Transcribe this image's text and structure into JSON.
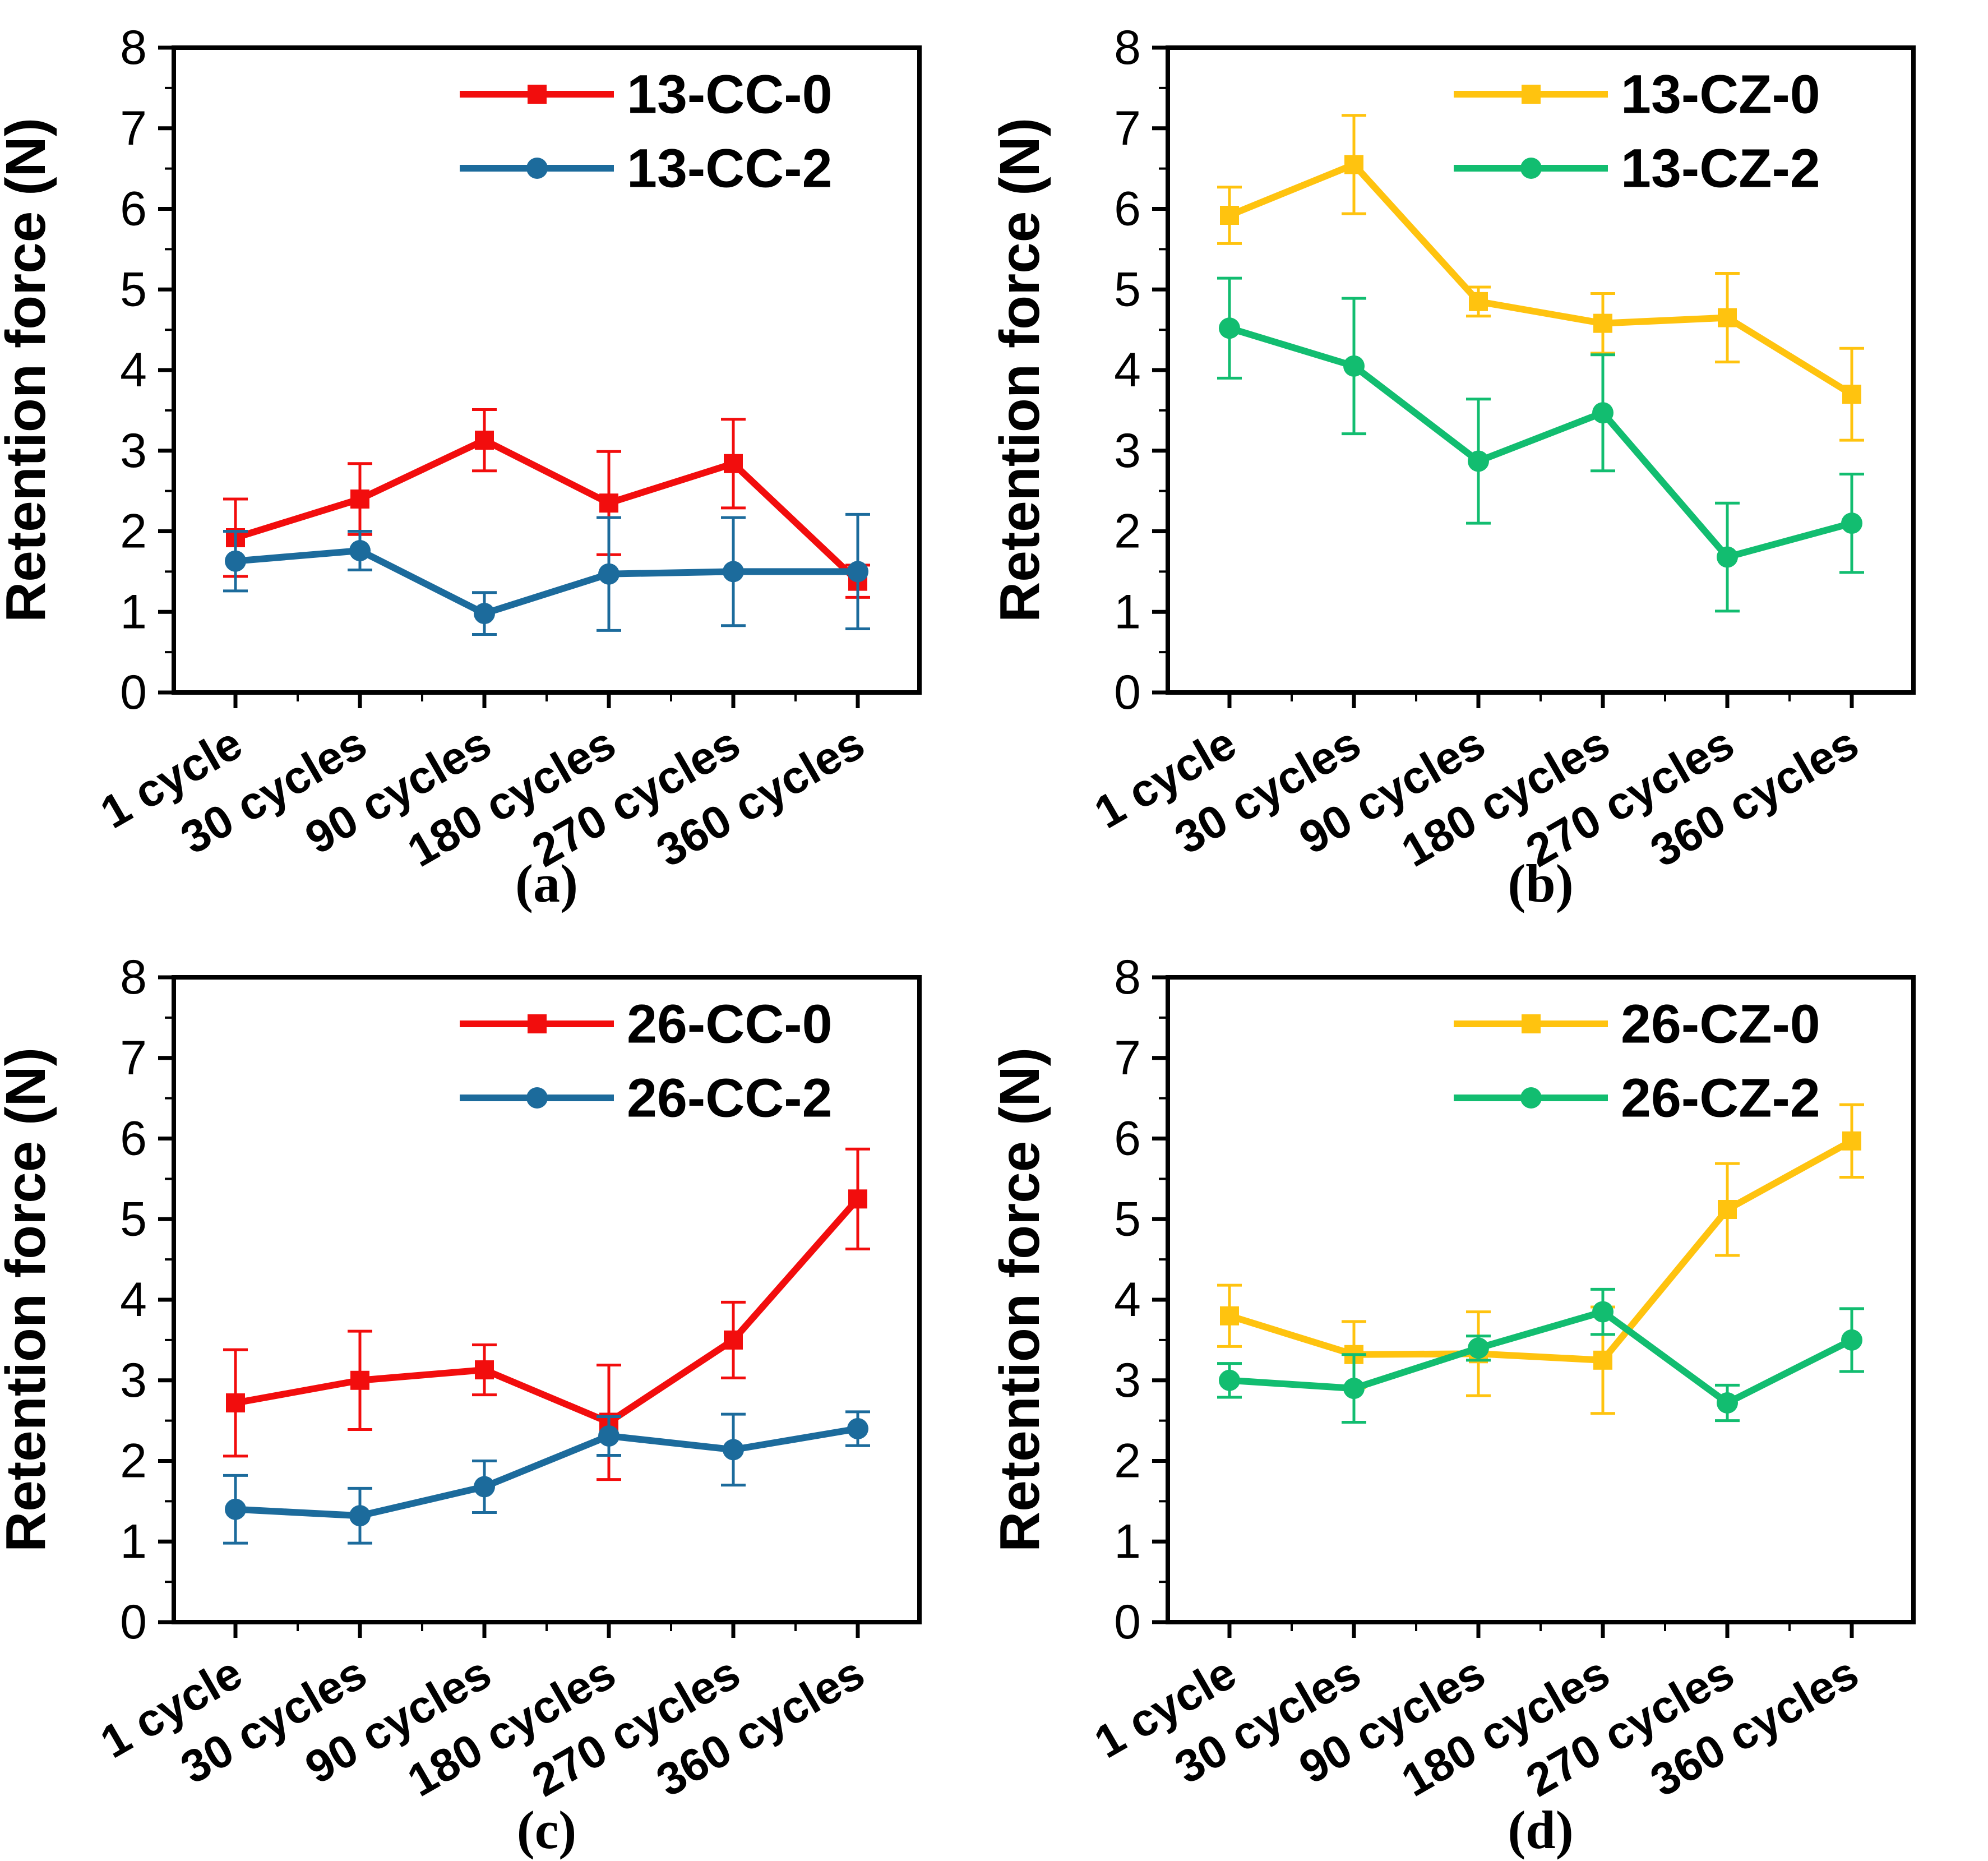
{
  "figure": {
    "background_color": "#FFFFFF",
    "axis_color": "#000000",
    "text_color": "#000000"
  },
  "colors": {
    "red": "#F20D0D",
    "blue": "#1C6B9C",
    "yellow": "#FFC30F",
    "green": "#12BD70"
  },
  "chart_data": [
    {
      "id": "a",
      "panel_label": "(a)",
      "type": "line",
      "title": "",
      "xlabel": "",
      "ylabel": "Retention force (N)",
      "ylim": [
        0,
        8
      ],
      "yticks": [
        0,
        1,
        2,
        3,
        4,
        5,
        6,
        7,
        8
      ],
      "grid": false,
      "legend_position": "top-right-inside",
      "categories": [
        "1 cycle",
        "30 cycles",
        "90 cycles",
        "180 cycles",
        "270 cycles",
        "360 cycles"
      ],
      "series": [
        {
          "name": "13-CC-0",
          "color": "#F20D0D",
          "marker": "square",
          "values": [
            1.92,
            2.4,
            3.13,
            2.35,
            2.84,
            1.38
          ],
          "errors": [
            0.48,
            0.44,
            0.38,
            0.64,
            0.55,
            0.2
          ]
        },
        {
          "name": "13-CC-2",
          "color": "#1C6B9C",
          "marker": "circle",
          "values": [
            1.63,
            1.76,
            0.98,
            1.47,
            1.5,
            1.5
          ],
          "errors": [
            0.37,
            0.24,
            0.26,
            0.7,
            0.67,
            0.71
          ]
        }
      ]
    },
    {
      "id": "b",
      "panel_label": "(b)",
      "type": "line",
      "title": "",
      "xlabel": "",
      "ylabel": "Retention force (N)",
      "ylim": [
        0,
        8
      ],
      "yticks": [
        0,
        1,
        2,
        3,
        4,
        5,
        6,
        7,
        8
      ],
      "grid": false,
      "legend_position": "top-right-inside",
      "categories": [
        "1 cycle",
        "30 cycles",
        "90 cycles",
        "180 cycles",
        "270 cycles",
        "360 cycles"
      ],
      "series": [
        {
          "name": "13-CZ-0",
          "color": "#FFC30F",
          "marker": "square",
          "values": [
            5.92,
            6.55,
            4.85,
            4.58,
            4.65,
            3.7
          ],
          "errors": [
            0.35,
            0.61,
            0.18,
            0.37,
            0.55,
            0.57
          ]
        },
        {
          "name": "13-CZ-2",
          "color": "#12BD70",
          "marker": "circle",
          "values": [
            4.52,
            4.05,
            2.87,
            3.47,
            1.68,
            2.1
          ],
          "errors": [
            0.62,
            0.84,
            0.77,
            0.72,
            0.67,
            0.61
          ]
        }
      ]
    },
    {
      "id": "c",
      "panel_label": "(c)",
      "type": "line",
      "title": "",
      "xlabel": "",
      "ylabel": "Retention force (N)",
      "ylim": [
        0,
        8
      ],
      "yticks": [
        0,
        1,
        2,
        3,
        4,
        5,
        6,
        7,
        8
      ],
      "grid": false,
      "legend_position": "top-right-inside",
      "categories": [
        "1 cycle",
        "30 cycles",
        "90 cycles",
        "180 cycles",
        "270 cycles",
        "360 cycles"
      ],
      "series": [
        {
          "name": "26-CC-0",
          "color": "#F20D0D",
          "marker": "square",
          "values": [
            2.72,
            3.0,
            3.13,
            2.48,
            3.5,
            5.25
          ],
          "errors": [
            0.66,
            0.61,
            0.31,
            0.71,
            0.47,
            0.62
          ]
        },
        {
          "name": "26-CC-2",
          "color": "#1C6B9C",
          "marker": "circle",
          "values": [
            1.4,
            1.32,
            1.68,
            2.31,
            2.14,
            2.4
          ],
          "errors": [
            0.42,
            0.34,
            0.32,
            0.24,
            0.44,
            0.21
          ]
        }
      ]
    },
    {
      "id": "d",
      "panel_label": "(d)",
      "type": "line",
      "title": "",
      "xlabel": "",
      "ylabel": "Retention force (N)",
      "ylim": [
        0,
        8
      ],
      "yticks": [
        0,
        1,
        2,
        3,
        4,
        5,
        6,
        7,
        8
      ],
      "grid": false,
      "legend_position": "top-right-inside",
      "categories": [
        "1 cycle",
        "30 cycles",
        "90 cycles",
        "180 cycles",
        "270 cycles",
        "360 cycles"
      ],
      "series": [
        {
          "name": "26-CZ-0",
          "color": "#FFC30F",
          "marker": "square",
          "values": [
            3.8,
            3.32,
            3.33,
            3.25,
            5.12,
            5.97
          ],
          "errors": [
            0.38,
            0.41,
            0.52,
            0.66,
            0.57,
            0.45
          ]
        },
        {
          "name": "26-CZ-2",
          "color": "#12BD70",
          "marker": "circle",
          "values": [
            3.0,
            2.9,
            3.4,
            3.85,
            2.72,
            3.5
          ],
          "errors": [
            0.21,
            0.42,
            0.15,
            0.28,
            0.22,
            0.39
          ]
        }
      ]
    }
  ]
}
